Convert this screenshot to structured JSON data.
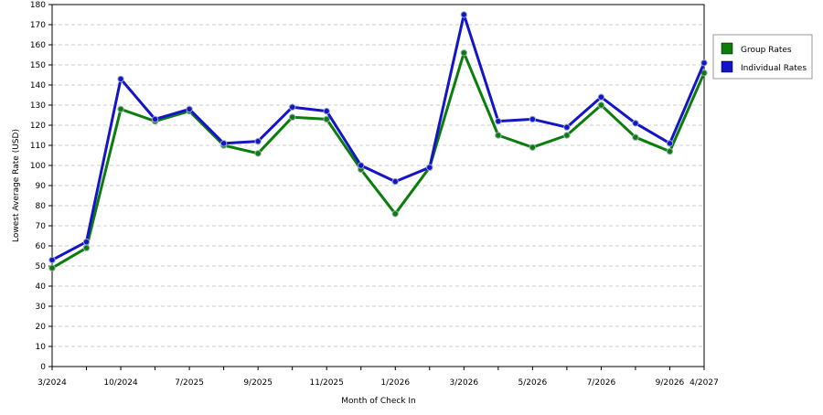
{
  "chart_data": {
    "type": "line",
    "x_label": "Month of Check In",
    "y_label": "Lowest Average Rate (USD)",
    "categories": [
      "3/2024",
      null,
      "10/2024",
      null,
      "7/2025",
      null,
      "9/2025",
      null,
      "11/2025",
      null,
      "1/2026",
      null,
      "3/2026",
      null,
      "5/2026",
      null,
      "7/2026",
      null,
      "9/2026",
      "4/2027"
    ],
    "series": [
      {
        "name": "Group Rates",
        "color": "#0b7d0b",
        "values": [
          49,
          59,
          128,
          122,
          127,
          110,
          106,
          124,
          123,
          98,
          76,
          99,
          156,
          115,
          109,
          115,
          130,
          114,
          107,
          146
        ]
      },
      {
        "name": "Individual Rates",
        "color": "#1414c8",
        "values": [
          53,
          62,
          143,
          123,
          128,
          111,
          112,
          129,
          127,
          100,
          92,
          99,
          175,
          122,
          123,
          119,
          134,
          121,
          111,
          151
        ]
      }
    ],
    "ylim": [
      0,
      180
    ],
    "yticks": [
      0,
      10,
      20,
      30,
      40,
      50,
      60,
      70,
      80,
      90,
      100,
      110,
      120,
      130,
      140,
      150,
      160,
      170,
      180
    ],
    "grid": true,
    "legend": "right"
  }
}
